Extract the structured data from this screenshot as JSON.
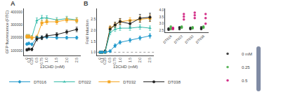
{
  "chart_data": [
    {
      "type": "line",
      "title": "A",
      "x": [
        0,
        0.1,
        0.25,
        0.5,
        0.75,
        1.0,
        1.5,
        2.0,
        2.5
      ],
      "xlim": [
        -0.15,
        2.7
      ],
      "xticks": [
        0,
        0.1,
        0.25,
        0.5,
        0.75,
        {
          "value": 1.0,
          "label": "1.0"
        },
        1.5,
        {
          "value": 2.0,
          "label": "2.0"
        },
        2.5
      ],
      "ylim": [
        60000,
        430000
      ],
      "yticks": [
        100000,
        200000,
        300000,
        400000
      ],
      "xlabel": "13CHD (mM)",
      "ylabel": "GFP fluorescence (FITC)",
      "grid": false,
      "series": [
        {
          "name": "DT022",
          "color": "#33bbaa",
          "marker": "triangle-up",
          "values": [
            210000,
            210000,
            205000,
            335000,
            355000,
            355000,
            340000,
            350000,
            340000
          ],
          "errors": [
            15000,
            15000,
            12000,
            20000,
            20000,
            18000,
            18000,
            18000,
            18000
          ]
        },
        {
          "name": "DT032",
          "color": "#f5a623",
          "marker": "square",
          "values": [
            210000,
            210000,
            200000,
            205000,
            315000,
            325000,
            325000,
            340000,
            335000
          ],
          "errors": [
            15000,
            15000,
            15000,
            15000,
            20000,
            20000,
            20000,
            20000,
            20000
          ]
        },
        {
          "name": "DT016",
          "color": "#2299cc",
          "marker": "diamond",
          "values": [
            150000,
            155000,
            148000,
            200000,
            200000,
            205000,
            200000,
            200000,
            200000
          ],
          "errors": [
            10000,
            10000,
            10000,
            12000,
            12000,
            12000,
            12000,
            12000,
            12000
          ]
        },
        {
          "name": "DT038",
          "color": "#222222",
          "marker": "circle",
          "values": [
            105000,
            110000,
            108000,
            190000,
            200000,
            215000,
            225000,
            245000,
            265000
          ],
          "errors": [
            10000,
            10000,
            10000,
            15000,
            15000,
            15000,
            15000,
            15000,
            18000
          ]
        }
      ]
    },
    {
      "type": "line",
      "title": "B",
      "x": [
        0,
        0.1,
        0.25,
        0.5,
        0.75,
        1.0,
        1.5,
        2.0,
        2.5
      ],
      "xlim": [
        -0.15,
        2.7
      ],
      "xticks": [
        0,
        0.1,
        0.25,
        0.5,
        0.75,
        {
          "value": 1.0,
          "label": "1.0"
        },
        1.5,
        {
          "value": 2.0,
          "label": "2.0"
        },
        2.5
      ],
      "ylim": [
        0.85,
        3.0
      ],
      "yticks": [
        {
          "value": 1.0,
          "label": "1.0"
        },
        1.5,
        {
          "value": 2.0,
          "label": "2.0"
        },
        2.5
      ],
      "xlabel": "13CHD (mM)",
      "ylabel": "Fold Induction",
      "grid": false,
      "legend": "bottom",
      "hline": 1.0,
      "series": [
        {
          "name": "DT032",
          "color": "#f5a623",
          "marker": "square",
          "values": [
            1.0,
            1.0,
            1.0,
            2.1,
            2.25,
            2.4,
            2.45,
            2.5,
            2.55
          ],
          "errors": [
            0.04,
            0.04,
            0.04,
            0.12,
            0.12,
            0.12,
            0.13,
            0.13,
            0.15
          ]
        },
        {
          "name": "DT038",
          "color": "#222222",
          "marker": "circle",
          "values": [
            1.0,
            1.0,
            1.05,
            2.05,
            2.25,
            2.4,
            2.3,
            2.55,
            2.6
          ],
          "errors": [
            0.04,
            0.04,
            0.05,
            0.12,
            0.12,
            0.14,
            0.15,
            0.18,
            0.18
          ]
        },
        {
          "name": "DT022",
          "color": "#33bbaa",
          "marker": "triangle-up",
          "values": [
            1.0,
            1.0,
            1.0,
            1.9,
            2.05,
            2.1,
            2.1,
            2.15,
            2.1
          ],
          "errors": [
            0.04,
            0.04,
            0.04,
            0.1,
            0.1,
            0.1,
            0.1,
            0.1,
            0.1
          ]
        },
        {
          "name": "DT016",
          "color": "#2299cc",
          "marker": "diamond",
          "values": [
            1.0,
            1.0,
            1.0,
            1.05,
            1.3,
            1.45,
            1.55,
            1.65,
            1.75
          ],
          "errors": [
            0.04,
            0.04,
            0.04,
            0.06,
            0.08,
            0.08,
            0.09,
            0.09,
            0.1
          ]
        }
      ]
    },
    {
      "type": "scatter",
      "categories": [
        "DT016",
        "DT022",
        "DT032",
        "DT038"
      ],
      "ylim": [
        2.4,
        4.1
      ],
      "yticks": [
        2.5,
        {
          "value": 3.0,
          "label": "3.0"
        },
        3.5,
        {
          "value": 4.0,
          "label": "4.0"
        }
      ],
      "grid": false,
      "legend": "right",
      "series": [
        {
          "name": "0 mM",
          "color": "#222222",
          "marker": "circle",
          "values": [
            [
              2.55,
              2.6,
              2.65
            ],
            [
              2.6,
              2.7,
              2.75
            ],
            [
              2.6,
              2.65,
              2.7
            ],
            [
              2.6,
              2.65,
              2.75
            ]
          ]
        },
        {
          "name": "0.25",
          "color": "#44aa44",
          "marker": "circle",
          "values": [
            [
              2.6,
              2.7,
              2.8
            ],
            [
              2.7,
              2.75,
              2.8
            ],
            [
              2.65,
              2.7,
              2.75
            ],
            [
              2.7,
              2.75,
              2.8
            ]
          ]
        },
        {
          "name": "0.5",
          "color": "#cc1177",
          "marker": "circle",
          "values": [
            [
              2.6,
              2.65,
              2.7
            ],
            [
              3.3,
              3.5,
              3.7
            ],
            [
              3.4,
              3.6,
              3.8
            ],
            [
              3.0,
              3.4,
              3.7
            ]
          ]
        }
      ]
    }
  ]
}
